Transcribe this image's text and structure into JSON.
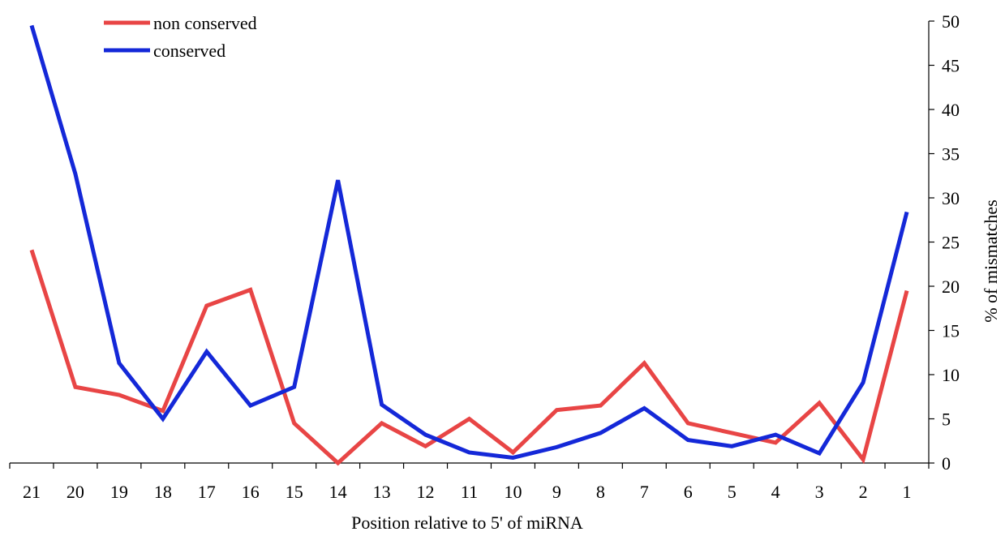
{
  "chart_data": {
    "type": "line",
    "categories": [
      "21",
      "20",
      "19",
      "18",
      "17",
      "16",
      "15",
      "14",
      "13",
      "12",
      "11",
      "10",
      "9",
      "8",
      "7",
      "6",
      "5",
      "4",
      "3",
      "2",
      "1"
    ],
    "series": [
      {
        "name": "non conserved",
        "color": "#e84545",
        "values": [
          24.1,
          8.6,
          7.7,
          5.9,
          17.8,
          19.6,
          4.5,
          0.0,
          4.5,
          1.9,
          5.0,
          1.2,
          6.0,
          6.5,
          11.3,
          4.5,
          3.4,
          2.3,
          6.8,
          0.4,
          19.5
        ]
      },
      {
        "name": "conserved",
        "color": "#1428d8",
        "values": [
          49.5,
          32.7,
          11.3,
          5.0,
          12.6,
          6.5,
          8.6,
          32.0,
          6.6,
          3.2,
          1.2,
          0.6,
          1.8,
          3.4,
          6.2,
          2.6,
          1.9,
          3.2,
          1.1,
          9.1,
          28.4
        ]
      }
    ],
    "xlabel": "Position relative to 5' of miRNA",
    "ylabel": "% of mismatches",
    "ylim": [
      0,
      50
    ],
    "yticks": [
      "0",
      "5",
      "10",
      "15",
      "20",
      "25",
      "30",
      "35",
      "40",
      "45",
      "50"
    ],
    "y_axis_side": "right",
    "legend_position": "top-left",
    "grid": false
  }
}
